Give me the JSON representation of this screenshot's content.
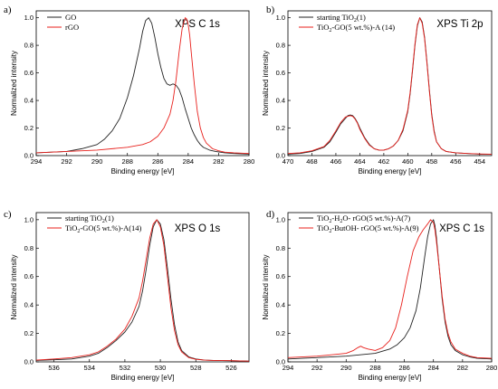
{
  "colors": {
    "black": "#222222",
    "red": "#e8201c"
  },
  "chart_data": [
    {
      "panel": "a)",
      "type": "line",
      "title": "XPS C 1s",
      "xlabel": "Binding energy [eV]",
      "ylabel": "Normalized intensity",
      "xlim": [
        294,
        280
      ],
      "ylim": [
        0,
        1.05
      ],
      "xticks": [
        294,
        292,
        290,
        288,
        286,
        284,
        282,
        280
      ],
      "yticks": [
        0.0,
        0.2,
        0.4,
        0.6,
        0.8,
        1.0
      ],
      "legend": "top-left",
      "series": [
        {
          "name": "GO",
          "color": "#222222",
          "x": [
            294,
            292,
            291,
            290,
            289.5,
            289,
            288.5,
            288,
            287.6,
            287.2,
            287,
            286.8,
            286.6,
            286.4,
            286.2,
            286,
            285.8,
            285.6,
            285.4,
            285.2,
            285,
            284.8,
            284.6,
            284.4,
            284.2,
            284,
            283.8,
            283.6,
            283.4,
            283.2,
            283,
            282.6,
            282.2,
            281.6,
            281,
            280
          ],
          "y": [
            0.02,
            0.03,
            0.05,
            0.08,
            0.12,
            0.18,
            0.27,
            0.42,
            0.58,
            0.78,
            0.9,
            0.98,
            1.0,
            0.96,
            0.86,
            0.74,
            0.64,
            0.56,
            0.52,
            0.51,
            0.52,
            0.51,
            0.48,
            0.42,
            0.34,
            0.27,
            0.2,
            0.15,
            0.11,
            0.08,
            0.06,
            0.04,
            0.03,
            0.02,
            0.015,
            0.01
          ]
        },
        {
          "name": "rGO",
          "color": "#e8201c",
          "x": [
            294,
            292,
            290,
            288,
            287,
            286.5,
            286,
            285.6,
            285.2,
            285,
            284.8,
            284.6,
            284.4,
            284.2,
            284.1,
            284,
            283.9,
            283.8,
            283.6,
            283.4,
            283.2,
            283,
            282.8,
            282.6,
            282.4,
            282,
            281.6,
            281,
            280
          ],
          "y": [
            0.02,
            0.03,
            0.04,
            0.06,
            0.08,
            0.1,
            0.14,
            0.2,
            0.3,
            0.4,
            0.55,
            0.75,
            0.92,
            1.0,
            0.99,
            0.95,
            0.87,
            0.75,
            0.52,
            0.32,
            0.2,
            0.13,
            0.09,
            0.07,
            0.05,
            0.035,
            0.025,
            0.02,
            0.015
          ]
        }
      ]
    },
    {
      "panel": "b)",
      "type": "line",
      "title": "XPS Ti 2p",
      "xlabel": "Binding energy [eV]",
      "ylabel": "Normalized intensity",
      "xlim": [
        470,
        453
      ],
      "ylim": [
        0,
        1.05
      ],
      "xticks": [
        470,
        468,
        466,
        464,
        462,
        460,
        458,
        456,
        454
      ],
      "yticks": [
        0.0,
        0.2,
        0.4,
        0.6,
        0.8,
        1.0
      ],
      "legend": "top-left",
      "legend_entries": [
        {
          "text": "starting TiO",
          "sub": "2",
          "tail": "(1)"
        },
        {
          "text": "TiO",
          "sub": "2",
          "tail": "-GO(5 wt.%)-A (14)"
        }
      ],
      "series": [
        {
          "color": "#222222",
          "x": [
            470,
            469,
            468,
            467,
            466.5,
            466,
            465.6,
            465.2,
            465,
            464.8,
            464.6,
            464.4,
            464.2,
            464,
            463.6,
            463.2,
            462.8,
            462.4,
            462,
            461.6,
            461.2,
            460.8,
            460.4,
            460,
            459.8,
            459.6,
            459.4,
            459.2,
            459,
            458.8,
            458.6,
            458.4,
            458.2,
            458,
            457.8,
            457.6,
            457.2,
            456.8,
            456,
            455,
            454,
            453
          ],
          "y": [
            0.01,
            0.015,
            0.03,
            0.06,
            0.1,
            0.17,
            0.23,
            0.27,
            0.29,
            0.295,
            0.29,
            0.27,
            0.24,
            0.2,
            0.13,
            0.08,
            0.05,
            0.04,
            0.04,
            0.05,
            0.07,
            0.11,
            0.18,
            0.32,
            0.45,
            0.62,
            0.8,
            0.94,
            1.0,
            0.97,
            0.86,
            0.68,
            0.48,
            0.3,
            0.18,
            0.1,
            0.05,
            0.03,
            0.02,
            0.015,
            0.01,
            0.01
          ]
        },
        {
          "color": "#e8201c",
          "x": [
            470,
            469,
            468,
            467,
            466.5,
            466,
            465.6,
            465.2,
            465,
            464.8,
            464.6,
            464.4,
            464.2,
            464,
            463.6,
            463.2,
            462.8,
            462.4,
            462,
            461.6,
            461.2,
            460.8,
            460.4,
            460,
            459.8,
            459.6,
            459.4,
            459.2,
            459,
            458.8,
            458.6,
            458.4,
            458.2,
            458,
            457.8,
            457.6,
            457.2,
            456.8,
            456,
            455,
            454,
            453
          ],
          "y": [
            0.015,
            0.02,
            0.035,
            0.065,
            0.11,
            0.18,
            0.24,
            0.28,
            0.285,
            0.29,
            0.285,
            0.265,
            0.235,
            0.19,
            0.125,
            0.075,
            0.05,
            0.04,
            0.04,
            0.05,
            0.07,
            0.11,
            0.19,
            0.33,
            0.46,
            0.63,
            0.81,
            0.95,
            1.0,
            0.96,
            0.85,
            0.67,
            0.47,
            0.29,
            0.17,
            0.1,
            0.05,
            0.03,
            0.02,
            0.015,
            0.012,
            0.01
          ]
        }
      ]
    },
    {
      "panel": "c)",
      "type": "line",
      "title": "XPS O 1s",
      "xlabel": "Binding energy [eV]",
      "ylabel": "Normalized intensity",
      "xlim": [
        537,
        525
      ],
      "ylim": [
        0,
        1.05
      ],
      "xticks": [
        536,
        534,
        532,
        530,
        528,
        526
      ],
      "yticks": [
        0.0,
        0.2,
        0.4,
        0.6,
        0.8,
        1.0
      ],
      "legend": "top-left",
      "legend_entries": [
        {
          "text": "starting TiO",
          "sub": "2",
          "tail": "(1)"
        },
        {
          "text": "TiO",
          "sub": "2",
          "tail": "-GO(5 wt.%)-A(14)"
        }
      ],
      "series": [
        {
          "color": "#222222",
          "x": [
            537,
            536,
            535,
            534,
            533.5,
            533,
            532.5,
            532,
            531.6,
            531.2,
            531,
            530.8,
            530.6,
            530.4,
            530.2,
            530,
            529.8,
            529.6,
            529.4,
            529.2,
            529,
            528.8,
            528.4,
            528,
            527.5,
            527,
            526,
            525
          ],
          "y": [
            0.01,
            0.015,
            0.02,
            0.04,
            0.06,
            0.1,
            0.15,
            0.21,
            0.28,
            0.39,
            0.5,
            0.65,
            0.82,
            0.95,
            1.0,
            0.97,
            0.86,
            0.66,
            0.44,
            0.26,
            0.14,
            0.08,
            0.035,
            0.02,
            0.012,
            0.01,
            0.008,
            0.005
          ]
        },
        {
          "color": "#e8201c",
          "x": [
            537,
            536,
            535,
            534,
            533.5,
            533,
            532.5,
            532,
            531.6,
            531.2,
            531,
            530.8,
            530.6,
            530.4,
            530.2,
            530,
            529.8,
            529.6,
            529.4,
            529.2,
            529,
            528.8,
            528.4,
            528,
            527.5,
            527,
            526,
            525
          ],
          "y": [
            0.012,
            0.02,
            0.03,
            0.05,
            0.07,
            0.11,
            0.16,
            0.23,
            0.32,
            0.45,
            0.57,
            0.72,
            0.87,
            0.97,
            1.0,
            0.95,
            0.82,
            0.6,
            0.38,
            0.22,
            0.12,
            0.07,
            0.03,
            0.018,
            0.012,
            0.01,
            0.008,
            0.005
          ]
        }
      ]
    },
    {
      "panel": "d)",
      "type": "line",
      "title": "XPS C 1s",
      "xlabel": "Binding energy [eV]",
      "ylabel": "Normalized intensity",
      "xlim": [
        294,
        280
      ],
      "ylim": [
        0,
        1.05
      ],
      "xticks": [
        294,
        292,
        290,
        288,
        286,
        284,
        282,
        280
      ],
      "yticks": [
        0.0,
        0.2,
        0.4,
        0.6,
        0.8,
        1.0
      ],
      "legend": "top-left",
      "legend_entries": [
        {
          "text": "TiO",
          "sub": "2",
          "tail": "-H",
          "sub2": "2",
          "tail2": "O- rGO(5 wt.%)-A(7)"
        },
        {
          "text": "TiO",
          "sub": "2",
          "tail": "-ButOH- rGO(5 wt.%)-A(9)"
        }
      ],
      "series": [
        {
          "color": "#222222",
          "x": [
            294,
            292,
            290,
            288,
            287,
            286.5,
            286,
            285.6,
            285.2,
            284.9,
            284.6,
            284.4,
            284.2,
            284,
            283.9,
            283.8,
            283.6,
            283.4,
            283.2,
            283,
            282.8,
            282.5,
            282,
            281.5,
            281,
            280
          ],
          "y": [
            0.02,
            0.03,
            0.04,
            0.06,
            0.09,
            0.12,
            0.17,
            0.24,
            0.36,
            0.52,
            0.74,
            0.88,
            0.97,
            1.0,
            0.96,
            0.88,
            0.66,
            0.44,
            0.28,
            0.18,
            0.12,
            0.08,
            0.05,
            0.035,
            0.025,
            0.02
          ]
        },
        {
          "color": "#e8201c",
          "x": [
            294,
            292,
            291,
            290,
            289.5,
            289.2,
            289,
            288.8,
            288.5,
            288,
            287.5,
            287,
            286.6,
            286.2,
            285.8,
            285.4,
            285,
            284.7,
            284.4,
            284.2,
            284,
            283.9,
            283.8,
            283.6,
            283.4,
            283.2,
            283,
            282.8,
            282.5,
            282,
            281.5,
            281,
            280
          ],
          "y": [
            0.03,
            0.04,
            0.05,
            0.06,
            0.08,
            0.1,
            0.11,
            0.1,
            0.09,
            0.08,
            0.1,
            0.15,
            0.24,
            0.4,
            0.6,
            0.78,
            0.88,
            0.93,
            0.97,
            1.0,
            0.98,
            0.93,
            0.85,
            0.66,
            0.46,
            0.3,
            0.2,
            0.14,
            0.09,
            0.06,
            0.04,
            0.03,
            0.025
          ]
        }
      ]
    }
  ]
}
